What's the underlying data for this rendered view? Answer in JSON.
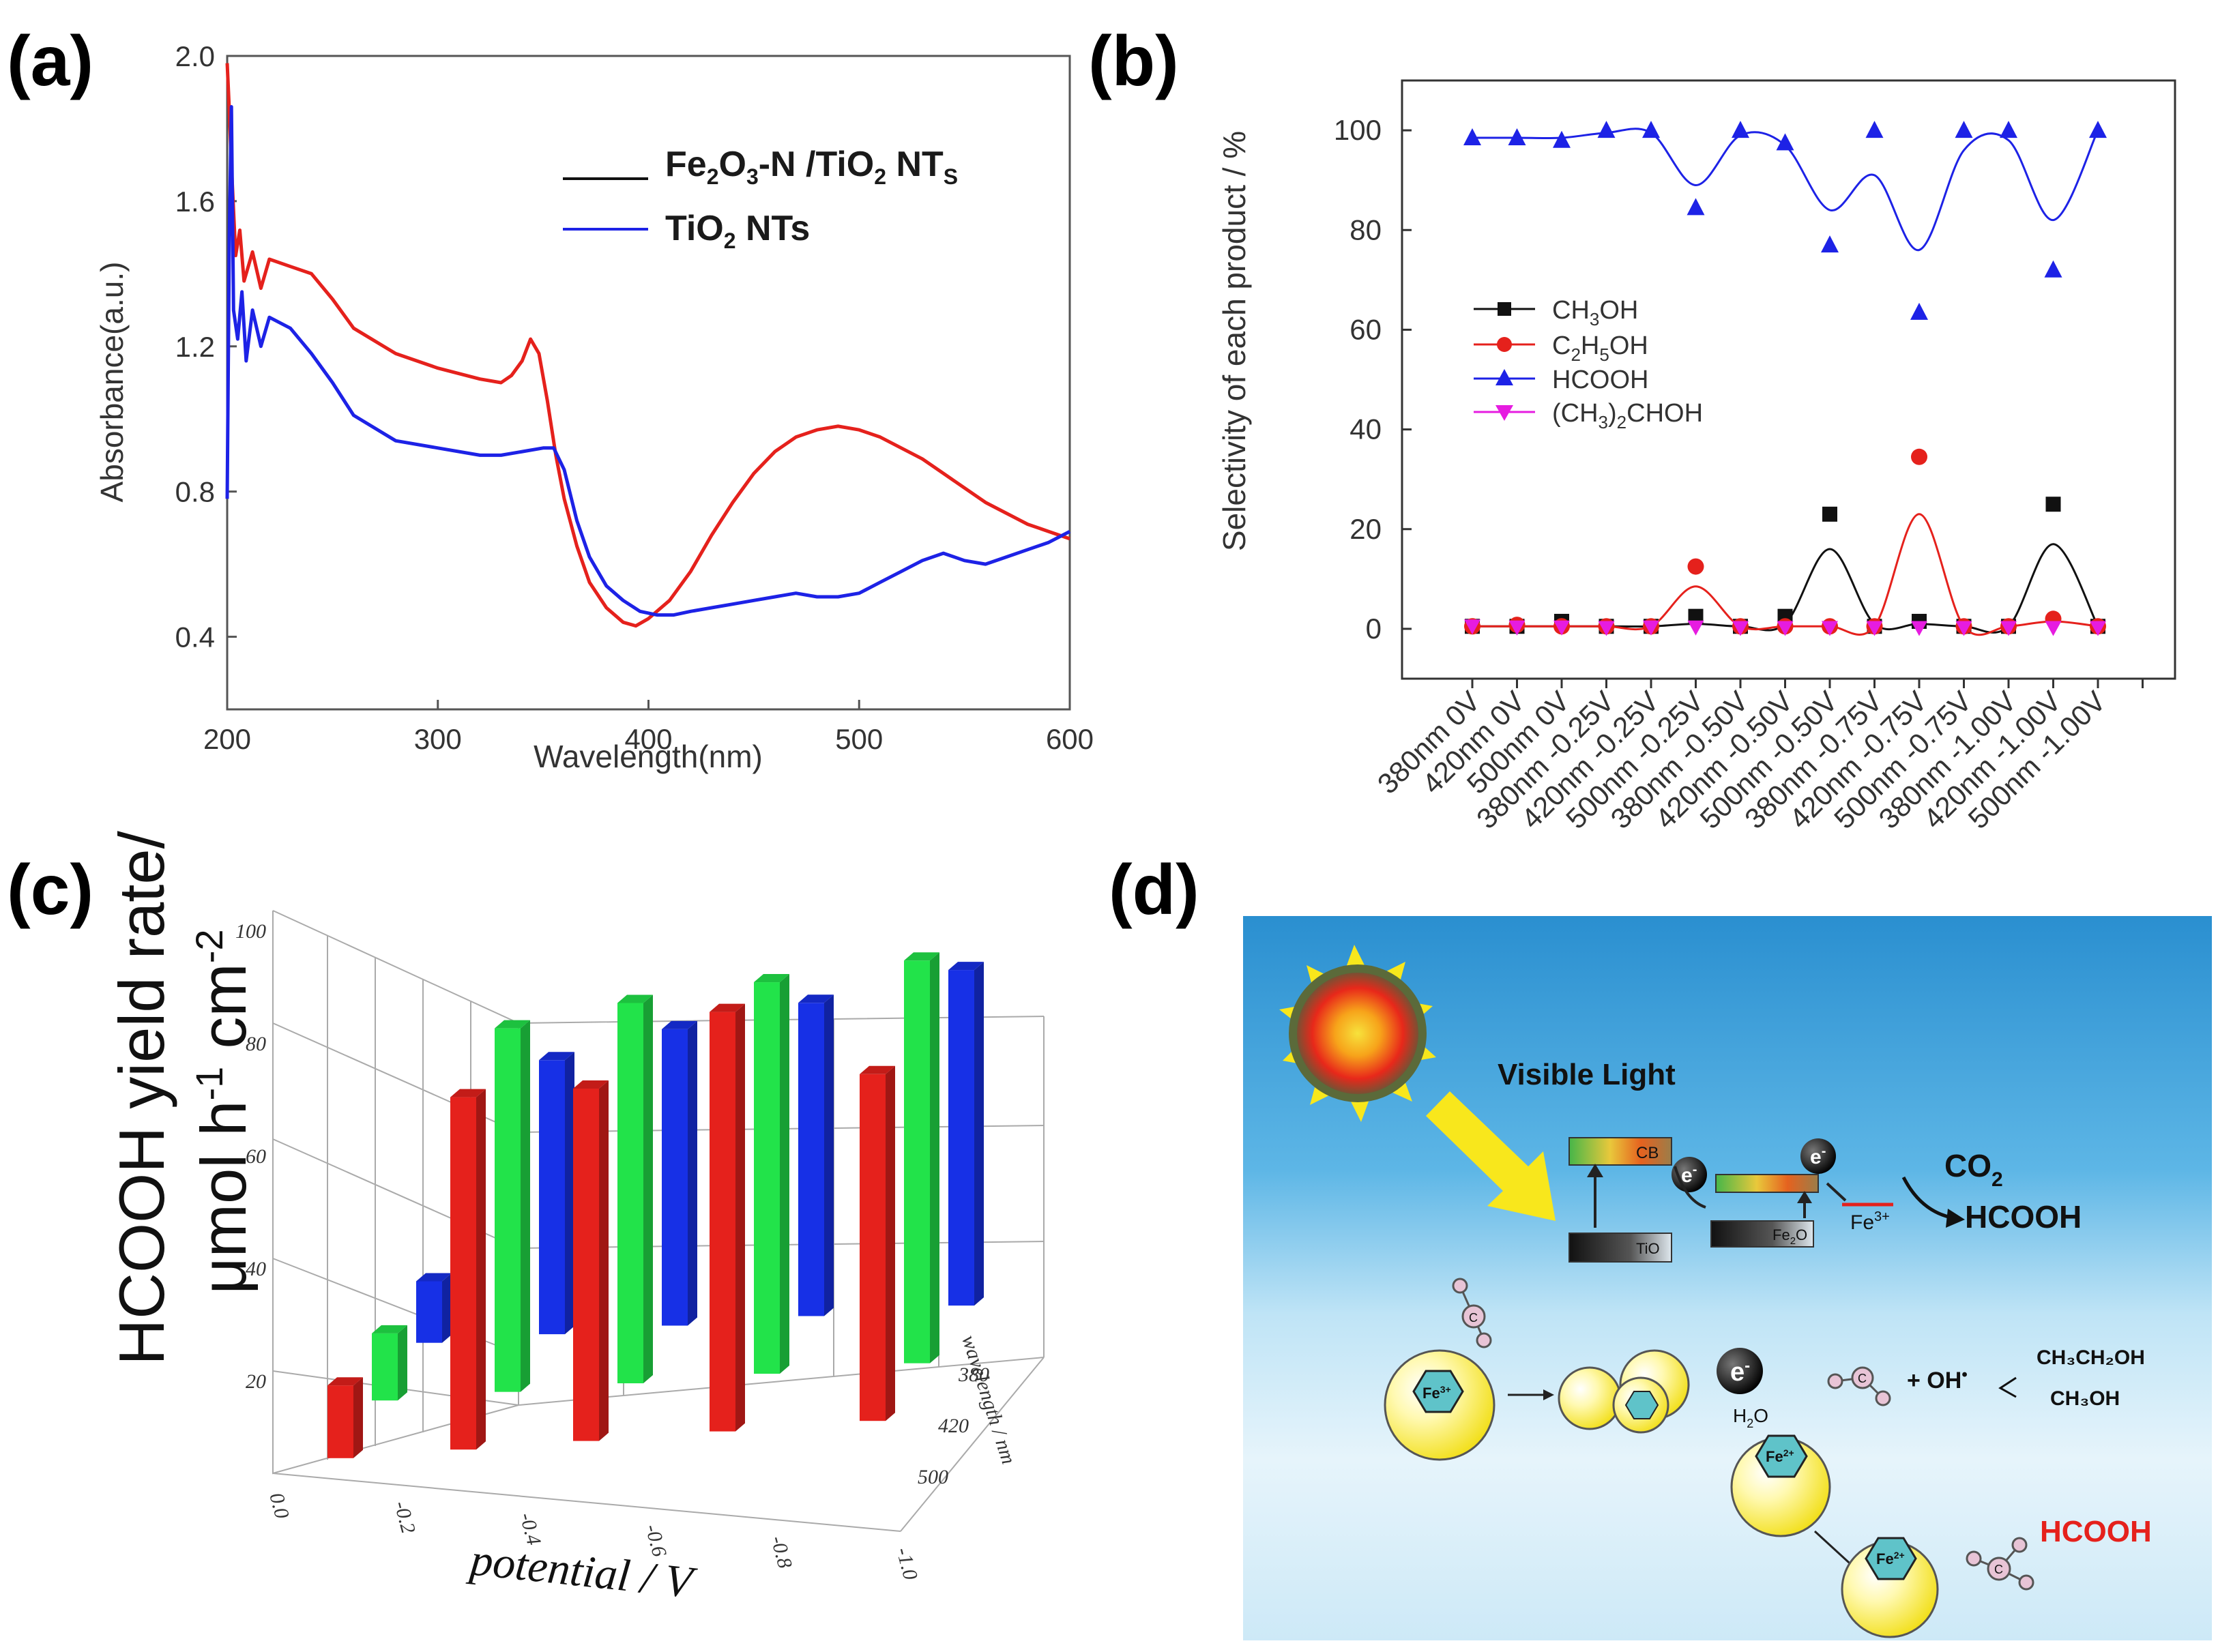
{
  "panels": {
    "a": "(a)",
    "b": "(b)",
    "c": "(c)",
    "d": "(d)"
  },
  "colors": {
    "red": "#e5211c",
    "blue": "#1d22e6",
    "black": "#111111",
    "magenta": "#e61ce0",
    "green": "#22e34a",
    "bar_blue": "#1730e6"
  },
  "chart_data": [
    {
      "id": "a",
      "type": "line",
      "xlabel": "Wavelength(nm)",
      "ylabel": "Absorbance(a.u.)",
      "xlim": [
        200,
        600
      ],
      "ylim": [
        0.2,
        2.0
      ],
      "xticks": [
        "200",
        "300",
        "400",
        "500",
        "600"
      ],
      "yticks": [
        "0.4",
        "0.8",
        "1.2",
        "1.6",
        "2.0"
      ],
      "legend": {
        "placement": "top-right",
        "fe_main": "Fe",
        "fe_sub1": "2",
        "fe_mid": "O",
        "fe_sub2": "3",
        "fe_rest": "-N /TiO",
        "fe_sub3": "2",
        "fe_end": " NT",
        "fe_sub4": "S",
        "ti_main": "TiO",
        "ti_sub": "2",
        "ti_end": " NTs"
      },
      "series": [
        {
          "name": "Fe2O3-N /TiO2 NTs",
          "color": "#e5211c",
          "x": [
            200,
            201,
            202,
            204,
            206,
            208,
            212,
            216,
            220,
            230,
            240,
            250,
            260,
            280,
            300,
            320,
            330,
            335,
            340,
            344,
            348,
            352,
            356,
            360,
            366,
            372,
            380,
            388,
            394,
            400,
            410,
            420,
            430,
            440,
            450,
            460,
            470,
            480,
            490,
            500,
            510,
            520,
            530,
            540,
            550,
            560,
            570,
            580,
            590,
            600
          ],
          "y": [
            1.98,
            1.85,
            1.7,
            1.45,
            1.52,
            1.38,
            1.46,
            1.36,
            1.44,
            1.42,
            1.4,
            1.33,
            1.25,
            1.18,
            1.14,
            1.11,
            1.1,
            1.12,
            1.16,
            1.22,
            1.18,
            1.05,
            0.9,
            0.78,
            0.65,
            0.55,
            0.48,
            0.44,
            0.43,
            0.45,
            0.5,
            0.58,
            0.68,
            0.77,
            0.85,
            0.91,
            0.95,
            0.97,
            0.98,
            0.97,
            0.95,
            0.92,
            0.89,
            0.85,
            0.81,
            0.77,
            0.74,
            0.71,
            0.69,
            0.67
          ]
        },
        {
          "name": "TiO2 NTs",
          "color": "#1d22e6",
          "x": [
            200,
            201,
            202,
            203,
            205,
            207,
            209,
            212,
            216,
            220,
            230,
            240,
            250,
            260,
            280,
            300,
            320,
            330,
            340,
            350,
            355,
            360,
            366,
            372,
            380,
            388,
            396,
            404,
            412,
            420,
            430,
            440,
            450,
            460,
            470,
            480,
            490,
            500,
            510,
            520,
            530,
            540,
            550,
            560,
            570,
            580,
            590,
            600
          ],
          "y": [
            0.78,
            1.5,
            1.86,
            1.3,
            1.22,
            1.35,
            1.16,
            1.3,
            1.2,
            1.28,
            1.25,
            1.18,
            1.1,
            1.01,
            0.94,
            0.92,
            0.9,
            0.9,
            0.91,
            0.92,
            0.92,
            0.86,
            0.72,
            0.62,
            0.54,
            0.5,
            0.47,
            0.46,
            0.46,
            0.47,
            0.48,
            0.49,
            0.5,
            0.51,
            0.52,
            0.51,
            0.51,
            0.52,
            0.55,
            0.58,
            0.61,
            0.63,
            0.61,
            0.6,
            0.62,
            0.64,
            0.66,
            0.69
          ]
        }
      ]
    },
    {
      "id": "b",
      "type": "scatter",
      "ylabel": "Selectivity of each product / %",
      "ylim": [
        -10,
        110
      ],
      "yticks": [
        "0",
        "20",
        "40",
        "60",
        "80",
        "100"
      ],
      "categories": [
        "380nm 0V",
        "420nm 0V",
        "500nm 0V",
        "380nm -0.25V",
        "420nm -0.25V",
        "500nm -0.25V",
        "380nm -0.50V",
        "420nm -0.50V",
        "500nm -0.50V",
        "380nm -0.75V",
        "420nm -0.75V",
        "500nm -0.75V",
        "380nm -1.00V",
        "420nm -1.00V",
        "500nm -1.00V"
      ],
      "legend": {
        "placement": "center-left",
        "ch3oh": [
          "CH",
          "3",
          "OH"
        ],
        "c2h5oh": [
          "C",
          "2",
          "H",
          "5",
          "OH"
        ],
        "hcooh": [
          "HCOOH"
        ],
        "ipa": [
          "(CH",
          "3",
          ")",
          "2",
          "CHOH"
        ]
      },
      "series": [
        {
          "name": "CH3OH",
          "marker": "square",
          "color": "#111111",
          "values": [
            0.5,
            0.5,
            1.5,
            0.5,
            0.5,
            2.5,
            0.5,
            2.5,
            23,
            0.5,
            1.5,
            0.5,
            0.5,
            25,
            0.5
          ],
          "fit": [
            0.5,
            0.5,
            0.5,
            0.5,
            0.5,
            1,
            0.5,
            1,
            16,
            1,
            1,
            0.5,
            0.5,
            17,
            0.5
          ]
        },
        {
          "name": "C2H5OH",
          "marker": "circle",
          "color": "#e5211c",
          "values": [
            0.5,
            0.8,
            0.5,
            0.5,
            0.5,
            12.5,
            0.5,
            0.5,
            0.5,
            0.5,
            34.5,
            0.5,
            0.5,
            2,
            0.5
          ],
          "fit": [
            0.5,
            0.5,
            0.5,
            0.5,
            0.5,
            8.5,
            0.5,
            0.5,
            0.5,
            0.5,
            23,
            0.5,
            0.5,
            1.5,
            0.5
          ]
        },
        {
          "name": "HCOOH",
          "marker": "triangle-up",
          "color": "#1d22e6",
          "values": [
            98.5,
            98.5,
            98,
            100,
            100,
            84.5,
            100,
            97.5,
            77,
            100,
            63.5,
            100,
            100,
            72,
            100
          ],
          "fit": [
            98.5,
            98.5,
            98.5,
            99.5,
            99.5,
            89,
            99,
            97,
            84,
            91,
            76,
            96,
            98,
            82,
            100
          ]
        },
        {
          "name": "(CH3)2CHOH",
          "marker": "triangle-down",
          "color": "#e61ce0",
          "values": [
            0.5,
            0.3,
            0.3,
            0.2,
            0.3,
            0.3,
            0.2,
            0.2,
            0.2,
            0.2,
            0.2,
            0.2,
            0.2,
            0.2,
            0.2
          ]
        }
      ]
    },
    {
      "id": "c",
      "type": "bar",
      "title_line1": "HCOOH yield rate/",
      "title_line2_pre": "μmol h",
      "title_sup1": "-1",
      "title_mid": " cm",
      "title_sup2": "-2",
      "xlabel": "potential / V",
      "zlabel": "wavelength / nm",
      "xticks": [
        "0.0",
        "-0.2",
        "-0.4",
        "-0.6",
        "-0.8",
        "-1.0"
      ],
      "zticks": [
        "20",
        "40",
        "60",
        "80",
        "100"
      ],
      "wavelength_ticks": [
        "380",
        "420",
        "500"
      ],
      "categories": [
        "0",
        "-0.25",
        "-0.50",
        "-0.75",
        "-1.00"
      ],
      "series": [
        {
          "name": "380 nm",
          "color": "#e5211c",
          "values": [
            13,
            63,
            63,
            75,
            62
          ]
        },
        {
          "name": "420 nm",
          "color": "#22e34a",
          "values": [
            12,
            65,
            68,
            70,
            72
          ]
        },
        {
          "name": "500 nm",
          "color": "#1730e6",
          "values": [
            11,
            49,
            53,
            56,
            60
          ]
        }
      ]
    },
    {
      "id": "d",
      "type": "table",
      "labels": {
        "visible_light": "Visible Light",
        "cb": "CB",
        "tio": "TiO",
        "fe2o": "Fe",
        "fe2o_b": "O",
        "co2": "CO",
        "co2_sub": "2",
        "hcooh": "HCOOH",
        "fe3": "Fe",
        "fe3_sup": "3+",
        "fe2_sup": "2+",
        "electron": "e",
        "electron_sup": "-",
        "h2o": "H",
        "h2o_sub": "2",
        "h2o_end": "O",
        "oh": "+ OH",
        "oh_sup": "•",
        "ethanol": "CH₃CH₂OH",
        "methanol": "CH₃OH",
        "carbon": "C",
        "hcooh_red": "HCOOH"
      }
    }
  ]
}
